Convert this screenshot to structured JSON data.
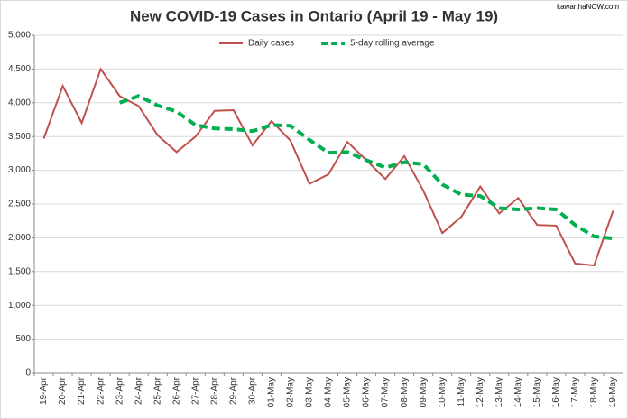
{
  "chart_data": {
    "type": "line",
    "title": "New COVID-19 Cases in Ontario (April 19 - May 19)",
    "watermark": "kawarthaNOW.com",
    "categories": [
      "19-Apr",
      "20-Apr",
      "21-Apr",
      "22-Apr",
      "23-Apr",
      "24-Apr",
      "25-Apr",
      "26-Apr",
      "27-Apr",
      "28-Apr",
      "29-Apr",
      "30-Apr",
      "01-May",
      "02-May",
      "03-May",
      "04-May",
      "05-May",
      "06-May",
      "07-May",
      "08-May",
      "09-May",
      "10-May",
      "11-May",
      "12-May",
      "13-May",
      "14-May",
      "15-May",
      "16-May",
      "17-May",
      "18-May",
      "19-May"
    ],
    "series": [
      {
        "name": "Daily cases",
        "color": "#c0504d",
        "dashed": false,
        "values": [
          3470,
          4250,
          3700,
          4500,
          4100,
          3950,
          3520,
          3270,
          3500,
          3880,
          3890,
          3370,
          3730,
          3440,
          2800,
          2940,
          3420,
          3150,
          2870,
          3210,
          2700,
          2070,
          2310,
          2760,
          2360,
          2590,
          2190,
          2180,
          1620,
          1590,
          2400
        ]
      },
      {
        "name": "5-day rolling average",
        "color": "#00b050",
        "dashed": true,
        "values": [
          null,
          null,
          null,
          null,
          4000,
          4100,
          3960,
          3870,
          3670,
          3620,
          3610,
          3580,
          3670,
          3660,
          3450,
          3260,
          3270,
          3150,
          3040,
          3120,
          3090,
          2790,
          2640,
          2620,
          2440,
          2420,
          2440,
          2420,
          2190,
          2020,
          1990
        ]
      }
    ],
    "ylim": [
      0,
      5000
    ],
    "yticks": [
      0,
      500,
      {
        "value": 1000,
        "label": "1,000"
      },
      {
        "value": 1500,
        "label": "1,500"
      },
      {
        "value": 2000,
        "label": "2,000"
      },
      {
        "value": 2500,
        "label": "2,500"
      },
      {
        "value": 3000,
        "label": "3,000"
      },
      {
        "value": 3500,
        "label": "3,500"
      },
      {
        "value": 4000,
        "label": "4,000"
      },
      {
        "value": 4500,
        "label": "4,500"
      },
      {
        "value": 5000,
        "label": "5,000"
      }
    ],
    "grid": true,
    "legend": "top"
  }
}
